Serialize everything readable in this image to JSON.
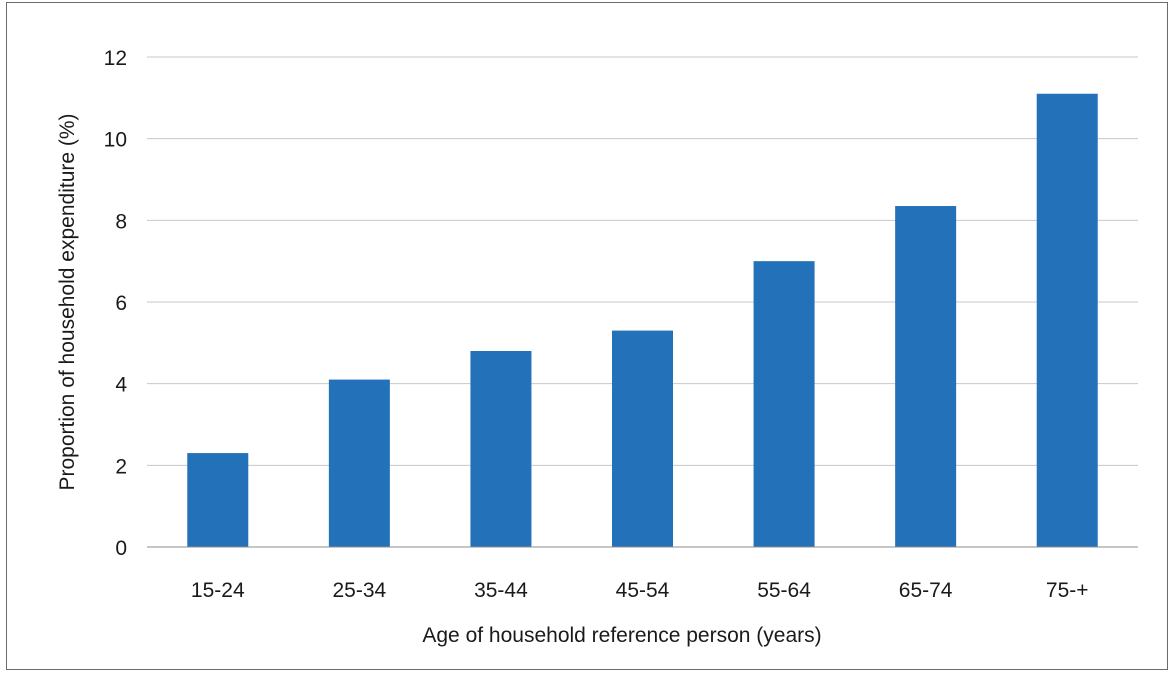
{
  "chart_data": {
    "type": "bar",
    "title": "",
    "xlabel": "Age of household reference person (years)",
    "ylabel": "Proportion of household expenditure (%)",
    "categories": [
      "15-24",
      "25-34",
      "35-44",
      "45-54",
      "55-64",
      "65-74",
      "75-+"
    ],
    "values": [
      2.3,
      4.1,
      4.8,
      5.3,
      7.0,
      8.35,
      11.1
    ],
    "ylim": [
      0,
      12
    ],
    "yticks": [
      "0",
      "2",
      "4",
      "6",
      "8",
      "10",
      "12"
    ],
    "grid": true,
    "legend": "none",
    "bar_color": "#2271B9"
  }
}
